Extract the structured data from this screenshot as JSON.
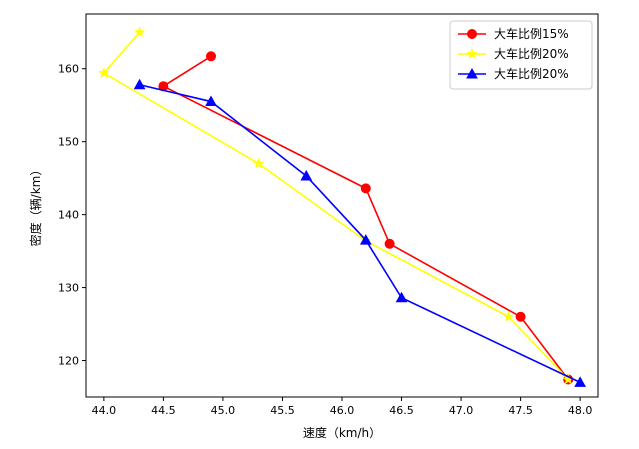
{
  "chart_data": {
    "type": "line",
    "title": "",
    "xlabel": "速度（km/h）",
    "ylabel": "密度（辆/km）",
    "xlim": [
      43.85,
      48.15
    ],
    "ylim": [
      115,
      167.5
    ],
    "xticks": [
      44.0,
      44.5,
      45.0,
      45.5,
      46.0,
      46.5,
      47.0,
      47.5,
      48.0
    ],
    "xtick_labels": [
      "44.0",
      "44.5",
      "45.0",
      "45.5",
      "46.0",
      "46.5",
      "47.0",
      "47.5",
      "48.0"
    ],
    "yticks": [
      120,
      130,
      140,
      150,
      160
    ],
    "ytick_labels": [
      "120",
      "130",
      "140",
      "150",
      "160"
    ],
    "grid": false,
    "legend_position": "top-right",
    "series": [
      {
        "name": "大车比例15%",
        "color": "#ff0000",
        "marker": "circle",
        "x": [
          44.9,
          44.5,
          46.2,
          46.4,
          47.5,
          47.9
        ],
        "y": [
          161.7,
          157.6,
          143.6,
          136.0,
          126.0,
          117.4
        ]
      },
      {
        "name": "大车比例20%",
        "color": "#ffff00",
        "marker": "star",
        "x": [
          44.3,
          44.0,
          45.3,
          46.2,
          47.4,
          47.9
        ],
        "y": [
          165.0,
          159.4,
          147.0,
          136.4,
          126.0,
          117.4
        ]
      },
      {
        "name": "大车比例20%",
        "color": "#0000ff",
        "marker": "triangle",
        "x": [
          44.3,
          44.9,
          45.7,
          46.2,
          46.5,
          48.0
        ],
        "y": [
          157.8,
          155.5,
          145.3,
          136.5,
          128.6,
          117.0
        ]
      }
    ]
  }
}
